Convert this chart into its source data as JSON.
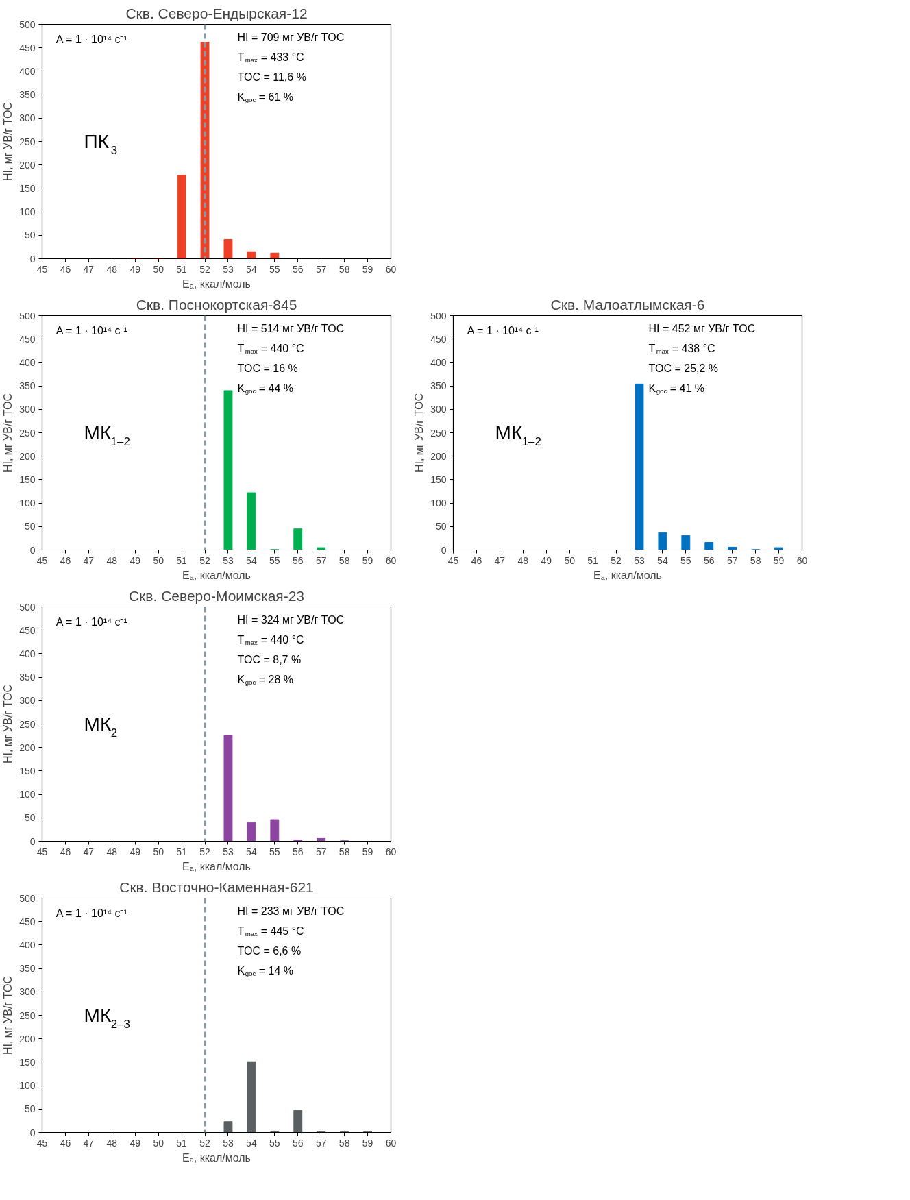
{
  "chart_data": [
    {
      "type": "bar",
      "title": "Скв. Северо-Ендырская-12",
      "xlabel": "Eₐ, ккал/моль",
      "ylabel": "HI, мг УВ/г TOC",
      "x": [
        45,
        46,
        47,
        48,
        49,
        50,
        51,
        52,
        53,
        54,
        55,
        56,
        57,
        58,
        59
      ],
      "values": [
        0,
        0,
        0,
        0,
        1,
        1,
        178,
        462,
        41,
        15,
        12,
        0,
        0,
        0,
        0
      ],
      "color": "#ee4027",
      "xlim": [
        45,
        60
      ],
      "ylim": [
        0,
        500
      ],
      "xticks": [
        45,
        46,
        47,
        48,
        49,
        50,
        51,
        52,
        53,
        54,
        55,
        56,
        57,
        58,
        59,
        60
      ],
      "yticks": [
        0,
        50,
        100,
        150,
        200,
        250,
        300,
        350,
        400,
        450,
        500
      ],
      "grid": false,
      "ref_lines": [
        {
          "axis": "x",
          "value": 52,
          "color": "#8a99a6",
          "line_style": "dashed"
        }
      ],
      "annotations": [
        "A = 1 · 10¹⁴ с⁻¹",
        "HI = 709 мг УВ/г TOC",
        "T$_{max}$ = 433 °C",
        "TOC = 11,6 %",
        "K$_{goc}$ = 61 %",
        "ПК$_{3}$"
      ]
    },
    {
      "type": "bar",
      "title": "Скв. Поснокортская-845",
      "xlabel": "Eₐ, ккал/моль",
      "ylabel": "HI, мг УВ/г TOC",
      "x": [
        45,
        46,
        47,
        48,
        49,
        50,
        51,
        52,
        53,
        54,
        55,
        56,
        57,
        58,
        59
      ],
      "values": [
        0,
        0,
        0,
        0,
        0,
        0,
        0,
        0,
        340,
        122,
        1,
        45,
        5,
        0,
        0
      ],
      "color": "#00b050",
      "xlim": [
        45,
        60
      ],
      "ylim": [
        0,
        500
      ],
      "xticks": [
        45,
        46,
        47,
        48,
        49,
        50,
        51,
        52,
        53,
        54,
        55,
        56,
        57,
        58,
        59,
        60
      ],
      "yticks": [
        0,
        50,
        100,
        150,
        200,
        250,
        300,
        350,
        400,
        450,
        500
      ],
      "grid": false,
      "ref_lines": [
        {
          "axis": "x",
          "value": 52,
          "color": "#8a99a6",
          "line_style": "dashed"
        }
      ],
      "annotations": [
        "A = 1 · 10¹⁴ с⁻¹",
        "HI = 514 мг УВ/г TOC",
        "T$_{max}$ = 440 °C",
        "TOC = 16 %",
        "K$_{goc}$ = 44 %",
        "МК$_{1–2}$"
      ]
    },
    {
      "type": "bar",
      "title": "Скв. Малоатлымская-6",
      "xlabel": "Eₐ, ккал/моль",
      "ylabel": "HI, мг УВ/г TOC",
      "x": [
        45,
        46,
        47,
        48,
        49,
        50,
        51,
        52,
        53,
        54,
        55,
        56,
        57,
        58,
        59
      ],
      "values": [
        0,
        0,
        0,
        0,
        0,
        0,
        0,
        0,
        354,
        37,
        31,
        16,
        6,
        1,
        5
      ],
      "color": "#0070c0",
      "xlim": [
        45,
        60
      ],
      "ylim": [
        0,
        500
      ],
      "xticks": [
        45,
        46,
        47,
        48,
        49,
        50,
        51,
        52,
        53,
        54,
        55,
        56,
        57,
        58,
        59,
        60
      ],
      "yticks": [
        0,
        50,
        100,
        150,
        200,
        250,
        300,
        350,
        400,
        450,
        500
      ],
      "grid": false,
      "annotations": [
        "A = 1 · 10¹⁴ с⁻¹",
        "HI = 452 мг УВ/г TOC",
        "T$_{max}$ = 438 °C",
        "TOC = 25,2 %",
        "K$_{goc}$ = 41 %",
        "МК$_{1–2}$"
      ]
    },
    {
      "type": "bar",
      "title": "Скв. Северо-Моимская-23",
      "xlabel": "Eₐ, ккал/моль",
      "ylabel": "HI, мг УВ/г TOC",
      "x": [
        45,
        46,
        47,
        48,
        49,
        50,
        51,
        52,
        53,
        54,
        55,
        56,
        57,
        58,
        59
      ],
      "values": [
        0,
        0,
        0,
        0,
        0,
        0,
        0,
        0,
        226,
        40,
        46,
        3,
        6,
        1,
        0
      ],
      "color": "#8b44a0",
      "xlim": [
        45,
        60
      ],
      "ylim": [
        0,
        500
      ],
      "xticks": [
        45,
        46,
        47,
        48,
        49,
        50,
        51,
        52,
        53,
        54,
        55,
        56,
        57,
        58,
        59,
        60
      ],
      "yticks": [
        0,
        50,
        100,
        150,
        200,
        250,
        300,
        350,
        400,
        450,
        500
      ],
      "grid": false,
      "ref_lines": [
        {
          "axis": "x",
          "value": 52,
          "color": "#8a99a6",
          "line_style": "dashed"
        }
      ],
      "annotations": [
        "A = 1 · 10¹⁴ с⁻¹",
        "HI = 324 мг УВ/г TOC",
        "T$_{max}$ = 440 °C",
        "TOC = 8,7 %",
        "K$_{goc}$ = 28 %",
        "МК$_{2}$"
      ]
    },
    {
      "type": "bar",
      "title": "Скв. Восточно-Каменная-621",
      "xlabel": "Eₐ, ккал/моль",
      "ylabel": "HI, мг УВ/г TOC",
      "x": [
        45,
        46,
        47,
        48,
        49,
        50,
        51,
        52,
        53,
        54,
        55,
        56,
        57,
        58,
        59
      ],
      "values": [
        0,
        0,
        0,
        0,
        0,
        0,
        0,
        0,
        23,
        151,
        3,
        47,
        2,
        2,
        2
      ],
      "color": "#595f63",
      "xlim": [
        45,
        60
      ],
      "ylim": [
        0,
        500
      ],
      "xticks": [
        45,
        46,
        47,
        48,
        49,
        50,
        51,
        52,
        53,
        54,
        55,
        56,
        57,
        58,
        59,
        60
      ],
      "yticks": [
        0,
        50,
        100,
        150,
        200,
        250,
        300,
        350,
        400,
        450,
        500
      ],
      "grid": false,
      "ref_lines": [
        {
          "axis": "x",
          "value": 52,
          "color": "#8a99a6",
          "line_style": "dashed"
        }
      ],
      "annotations": [
        "A = 1 · 10¹⁴ с⁻¹",
        "HI = 233 мг УВ/г TOC",
        "T$_{max}$ = 445 °C",
        "TOC = 6,6 %",
        "K$_{goc}$ = 14 %",
        "МК$_{2–3}$"
      ]
    }
  ]
}
